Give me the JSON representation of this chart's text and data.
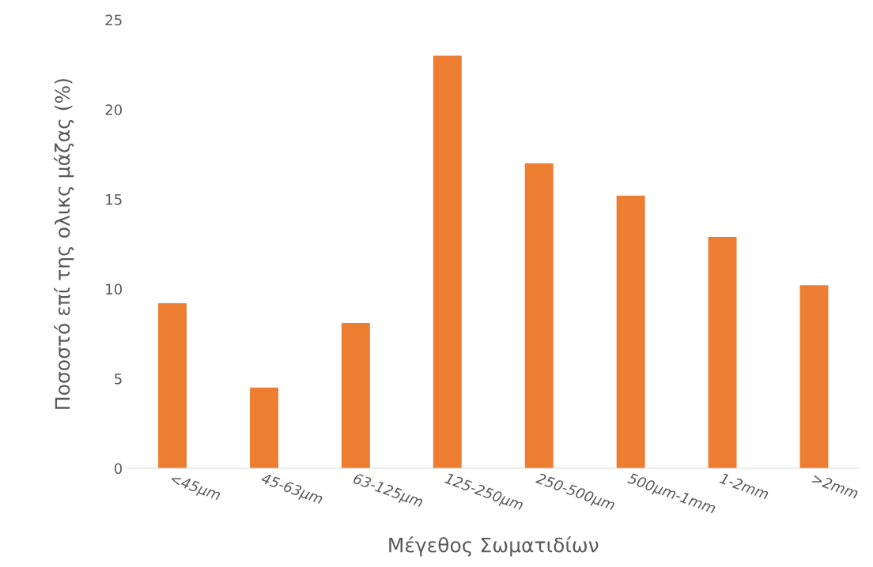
{
  "chart_data": {
    "type": "bar",
    "xlabel": "Μέγεθος Σωματιδίων",
    "ylabel": "Ποσοστό επί της ολικς μάζας (%)",
    "categories": [
      "<45μm",
      "45-63μm",
      "63-125μm",
      "125-250μm",
      "250-500μm",
      "500μm-1mm",
      "1-2mm",
      ">2mm"
    ],
    "values": [
      9.2,
      4.5,
      8.1,
      23.0,
      17.0,
      15.2,
      12.9,
      10.2
    ],
    "color": "#ed7d31",
    "ylim": [
      0,
      25
    ],
    "yticks": [
      0,
      5,
      10,
      15,
      20,
      25
    ],
    "grid": false
  }
}
